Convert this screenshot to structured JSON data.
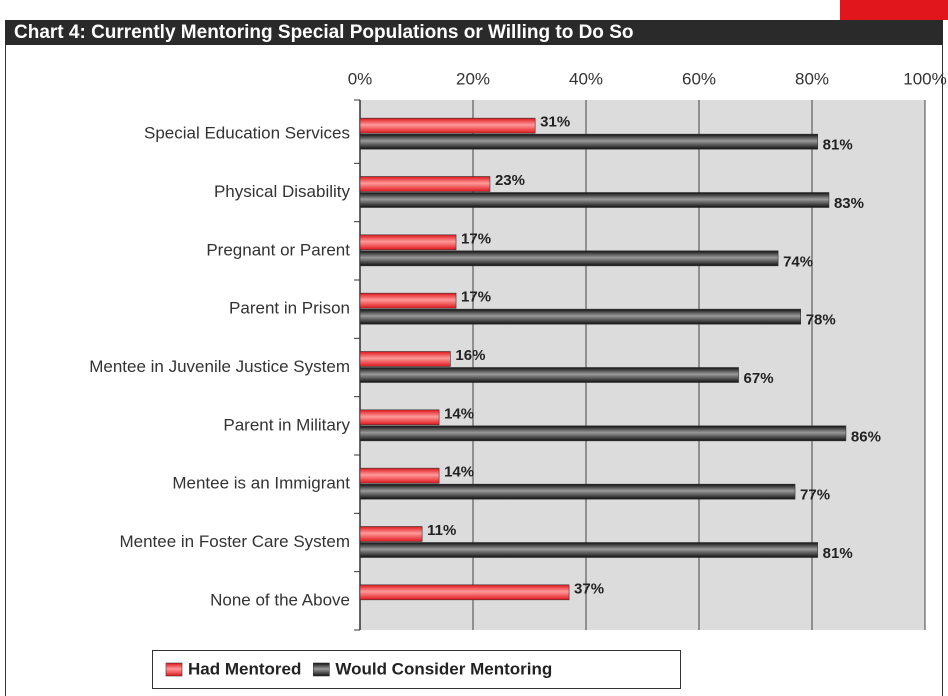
{
  "chart_data": {
    "type": "bar",
    "orientation": "horizontal",
    "title": "Chart 4: Currently Mentoring Special Populations or Willing to Do So",
    "categories": [
      "Special Education Services",
      "Physical Disability",
      "Pregnant or Parent",
      "Parent in Prison",
      "Mentee in Juvenile Justice System",
      "Parent in Military",
      "Mentee is an Immigrant",
      "Mentee in Foster Care System",
      "None of the Above"
    ],
    "series": [
      {
        "name": "Had Mentored",
        "color": "#e0161c",
        "values": [
          31,
          23,
          17,
          17,
          16,
          14,
          14,
          11,
          37
        ],
        "value_labels": [
          "31%",
          "23%",
          "17%",
          "17%",
          "16%",
          "14%",
          "14%",
          "11%",
          "37%"
        ]
      },
      {
        "name": "Would Consider Mentoring",
        "color": "#111111",
        "values": [
          81,
          83,
          74,
          78,
          67,
          86,
          77,
          81,
          null
        ],
        "value_labels": [
          "81%",
          "83%",
          "74%",
          "78%",
          "67%",
          "86%",
          "77%",
          "81%",
          null
        ]
      }
    ],
    "xlim": [
      0,
      100
    ],
    "xticks": [
      {
        "value": 0,
        "label": "0%"
      },
      {
        "value": 20,
        "label": "20%"
      },
      {
        "value": 40,
        "label": "40%"
      },
      {
        "value": 60,
        "label": "60%"
      },
      {
        "value": 80,
        "label": "80%"
      },
      {
        "value": 100,
        "label": "100%"
      }
    ],
    "grid": true,
    "legend": "bottom"
  }
}
